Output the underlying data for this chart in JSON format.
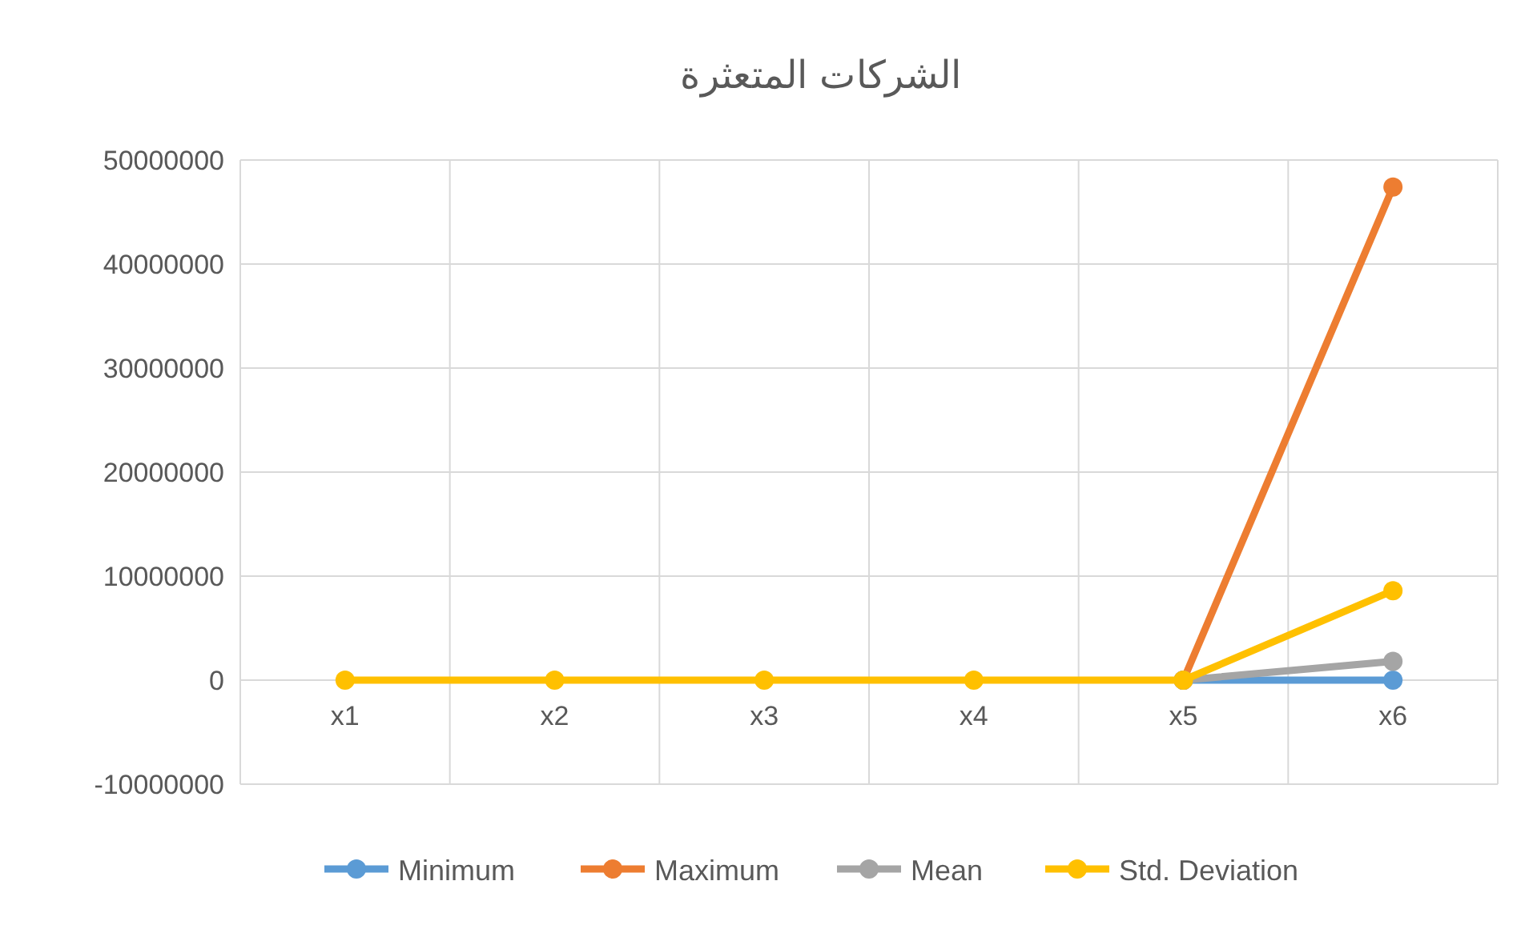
{
  "chart_data": {
    "type": "line",
    "title": "الشركات المتعثرة",
    "categories": [
      "x1",
      "x2",
      "x3",
      "x4",
      "x5",
      "x6"
    ],
    "series": [
      {
        "name": "Minimum",
        "color": "#5b9bd5",
        "values": [
          null,
          null,
          null,
          null,
          0,
          0
        ]
      },
      {
        "name": "Maximum",
        "color": "#ed7d31",
        "values": [
          null,
          null,
          null,
          null,
          0,
          47400000
        ]
      },
      {
        "name": "Mean",
        "color": "#a5a5a5",
        "values": [
          null,
          null,
          null,
          null,
          0,
          1800000
        ]
      },
      {
        "name": "Std. Deviation",
        "color": "#ffc000",
        "values": [
          0,
          0,
          0,
          0,
          0,
          8600000
        ]
      }
    ],
    "ylim": [
      -10000000,
      50000000
    ],
    "yticks": [
      -10000000,
      0,
      10000000,
      20000000,
      30000000,
      40000000,
      50000000
    ],
    "grid": true,
    "legend": "bottom",
    "marker": "circle",
    "line_style": "solid"
  }
}
